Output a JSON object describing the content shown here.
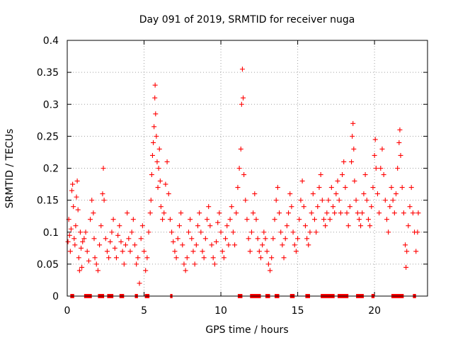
{
  "chart_data": {
    "type": "scatter",
    "title": "Day 091 of 2019, SRMTID for receiver nuga",
    "xlabel": "GPS time / hours",
    "ylabel": "SRMTID / TECUs",
    "xlim": [
      0,
      23.45
    ],
    "ylim": [
      0,
      0.4
    ],
    "xticks": [
      0,
      5,
      10,
      15,
      20
    ],
    "yticks": [
      0,
      0.05,
      0.1,
      0.15,
      0.2,
      0.25,
      0.3,
      0.35,
      0.4
    ],
    "xtick_labels": [
      "0",
      "5",
      "10",
      "15",
      "20"
    ],
    "ytick_labels": [
      "0",
      "0.05",
      "0.1",
      "0.15",
      "0.2",
      "0.25",
      "0.3",
      "0.35",
      "0.4"
    ],
    "grid": true,
    "marker": "+",
    "color": "#ff0000",
    "series": [
      {
        "name": "SRMTID",
        "points": [
          [
            0.05,
            0.085
          ],
          [
            0.1,
            0.12
          ],
          [
            0.15,
            0.095
          ],
          [
            0.2,
            0.07
          ],
          [
            0.25,
            0.105
          ],
          [
            0.3,
            0.165
          ],
          [
            0.35,
            0.175
          ],
          [
            0.4,
            0.14
          ],
          [
            0.45,
            0.09
          ],
          [
            0.5,
            0.08
          ],
          [
            0.55,
            0.11
          ],
          [
            0.6,
            0.155
          ],
          [
            0.65,
            0.18
          ],
          [
            0.7,
            0.135
          ],
          [
            0.75,
            0.06
          ],
          [
            0.8,
            0.04
          ],
          [
            0.85,
            0.1
          ],
          [
            0.9,
            0.075
          ],
          [
            0.95,
            0.045
          ],
          [
            1.0,
            0.085
          ],
          [
            1.1,
            0.09
          ],
          [
            1.2,
            0.1
          ],
          [
            1.3,
            0.07
          ],
          [
            1.4,
            0.055
          ],
          [
            1.5,
            0.12
          ],
          [
            1.6,
            0.15
          ],
          [
            1.7,
            0.13
          ],
          [
            1.75,
            0.09
          ],
          [
            1.8,
            0.06
          ],
          [
            1.9,
            0.05
          ],
          [
            2.0,
            0.04
          ],
          [
            2.1,
            0.08
          ],
          [
            2.2,
            0.11
          ],
          [
            2.3,
            0.16
          ],
          [
            2.35,
            0.2
          ],
          [
            2.4,
            0.15
          ],
          [
            2.5,
            0.09
          ],
          [
            2.6,
            0.07
          ],
          [
            2.7,
            0.06
          ],
          [
            2.8,
            0.085
          ],
          [
            2.9,
            0.1
          ],
          [
            3.0,
            0.12
          ],
          [
            3.1,
            0.075
          ],
          [
            3.2,
            0.06
          ],
          [
            3.3,
            0.095
          ],
          [
            3.4,
            0.11
          ],
          [
            3.5,
            0.085
          ],
          [
            3.6,
            0.07
          ],
          [
            3.7,
            0.05
          ],
          [
            3.8,
            0.08
          ],
          [
            3.9,
            0.13
          ],
          [
            4.0,
            0.09
          ],
          [
            4.1,
            0.07
          ],
          [
            4.2,
            0.1
          ],
          [
            4.3,
            0.12
          ],
          [
            4.4,
            0.08
          ],
          [
            4.5,
            0.05
          ],
          [
            4.6,
            0.06
          ],
          [
            4.7,
            0.02
          ],
          [
            4.8,
            0.09
          ],
          [
            4.9,
            0.11
          ],
          [
            5.0,
            0.07
          ],
          [
            5.1,
            0.04
          ],
          [
            5.2,
            0.06
          ],
          [
            5.3,
            0.1
          ],
          [
            5.4,
            0.13
          ],
          [
            5.45,
            0.15
          ],
          [
            5.5,
            0.19
          ],
          [
            5.55,
            0.22
          ],
          [
            5.6,
            0.24
          ],
          [
            5.65,
            0.265
          ],
          [
            5.7,
            0.31
          ],
          [
            5.72,
            0.33
          ],
          [
            5.75,
            0.285
          ],
          [
            5.8,
            0.25
          ],
          [
            5.85,
            0.21
          ],
          [
            5.9,
            0.17
          ],
          [
            5.95,
            0.2
          ],
          [
            6.0,
            0.23
          ],
          [
            6.05,
            0.18
          ],
          [
            6.1,
            0.14
          ],
          [
            6.2,
            0.12
          ],
          [
            6.3,
            0.13
          ],
          [
            6.4,
            0.175
          ],
          [
            6.5,
            0.21
          ],
          [
            6.6,
            0.16
          ],
          [
            6.7,
            0.12
          ],
          [
            6.8,
            0.1
          ],
          [
            6.9,
            0.085
          ],
          [
            7.0,
            0.07
          ],
          [
            7.1,
            0.06
          ],
          [
            7.2,
            0.09
          ],
          [
            7.3,
            0.11
          ],
          [
            7.4,
            0.13
          ],
          [
            7.5,
            0.08
          ],
          [
            7.6,
            0.05
          ],
          [
            7.7,
            0.04
          ],
          [
            7.8,
            0.06
          ],
          [
            7.9,
            0.1
          ],
          [
            8.0,
            0.12
          ],
          [
            8.1,
            0.09
          ],
          [
            8.2,
            0.07
          ],
          [
            8.3,
            0.05
          ],
          [
            8.4,
            0.08
          ],
          [
            8.5,
            0.11
          ],
          [
            8.6,
            0.13
          ],
          [
            8.7,
            0.1
          ],
          [
            8.8,
            0.07
          ],
          [
            8.9,
            0.06
          ],
          [
            9.0,
            0.09
          ],
          [
            9.1,
            0.12
          ],
          [
            9.2,
            0.14
          ],
          [
            9.3,
            0.11
          ],
          [
            9.4,
            0.08
          ],
          [
            9.5,
            0.06
          ],
          [
            9.6,
            0.05
          ],
          [
            9.7,
            0.085
          ],
          [
            9.8,
            0.115
          ],
          [
            9.9,
            0.13
          ],
          [
            10.0,
            0.1
          ],
          [
            10.1,
            0.07
          ],
          [
            10.2,
            0.06
          ],
          [
            10.3,
            0.09
          ],
          [
            10.4,
            0.11
          ],
          [
            10.5,
            0.08
          ],
          [
            10.6,
            0.12
          ],
          [
            10.7,
            0.14
          ],
          [
            10.8,
            0.1
          ],
          [
            10.9,
            0.08
          ],
          [
            11.0,
            0.13
          ],
          [
            11.1,
            0.17
          ],
          [
            11.2,
            0.2
          ],
          [
            11.3,
            0.23
          ],
          [
            11.35,
            0.3
          ],
          [
            11.4,
            0.355
          ],
          [
            11.45,
            0.31
          ],
          [
            11.5,
            0.19
          ],
          [
            11.6,
            0.15
          ],
          [
            11.7,
            0.12
          ],
          [
            11.8,
            0.09
          ],
          [
            11.9,
            0.07
          ],
          [
            12.0,
            0.1
          ],
          [
            12.1,
            0.13
          ],
          [
            12.2,
            0.16
          ],
          [
            12.3,
            0.12
          ],
          [
            12.4,
            0.09
          ],
          [
            12.5,
            0.07
          ],
          [
            12.6,
            0.06
          ],
          [
            12.7,
            0.08
          ],
          [
            12.8,
            0.1
          ],
          [
            12.9,
            0.09
          ],
          [
            13.0,
            0.07
          ],
          [
            13.1,
            0.05
          ],
          [
            13.2,
            0.04
          ],
          [
            13.3,
            0.06
          ],
          [
            13.4,
            0.09
          ],
          [
            13.5,
            0.12
          ],
          [
            13.6,
            0.15
          ],
          [
            13.7,
            0.17
          ],
          [
            13.8,
            0.13
          ],
          [
            13.9,
            0.1
          ],
          [
            14.0,
            0.08
          ],
          [
            14.1,
            0.06
          ],
          [
            14.2,
            0.09
          ],
          [
            14.3,
            0.11
          ],
          [
            14.4,
            0.13
          ],
          [
            14.5,
            0.16
          ],
          [
            14.6,
            0.14
          ],
          [
            14.7,
            0.1
          ],
          [
            14.8,
            0.08
          ],
          [
            14.9,
            0.07
          ],
          [
            15.0,
            0.09
          ],
          [
            15.1,
            0.12
          ],
          [
            15.2,
            0.15
          ],
          [
            15.3,
            0.18
          ],
          [
            15.4,
            0.14
          ],
          [
            15.5,
            0.11
          ],
          [
            15.6,
            0.09
          ],
          [
            15.7,
            0.08
          ],
          [
            15.8,
            0.1
          ],
          [
            15.9,
            0.13
          ],
          [
            16.0,
            0.16
          ],
          [
            16.1,
            0.12
          ],
          [
            16.2,
            0.1
          ],
          [
            16.3,
            0.14
          ],
          [
            16.4,
            0.17
          ],
          [
            16.5,
            0.19
          ],
          [
            16.6,
            0.15
          ],
          [
            16.7,
            0.12
          ],
          [
            16.8,
            0.11
          ],
          [
            16.9,
            0.13
          ],
          [
            17.0,
            0.15
          ],
          [
            17.1,
            0.12
          ],
          [
            17.2,
            0.17
          ],
          [
            17.3,
            0.14
          ],
          [
            17.4,
            0.13
          ],
          [
            17.5,
            0.16
          ],
          [
            17.6,
            0.18
          ],
          [
            17.7,
            0.15
          ],
          [
            17.8,
            0.13
          ],
          [
            17.9,
            0.19
          ],
          [
            18.0,
            0.21
          ],
          [
            18.1,
            0.17
          ],
          [
            18.2,
            0.13
          ],
          [
            18.3,
            0.11
          ],
          [
            18.4,
            0.14
          ],
          [
            18.5,
            0.21
          ],
          [
            18.55,
            0.25
          ],
          [
            18.6,
            0.27
          ],
          [
            18.65,
            0.23
          ],
          [
            18.7,
            0.18
          ],
          [
            18.8,
            0.15
          ],
          [
            18.9,
            0.13
          ],
          [
            19.0,
            0.12
          ],
          [
            19.1,
            0.11
          ],
          [
            19.2,
            0.13
          ],
          [
            19.3,
            0.16
          ],
          [
            19.4,
            0.19
          ],
          [
            19.5,
            0.15
          ],
          [
            19.6,
            0.12
          ],
          [
            19.7,
            0.11
          ],
          [
            19.8,
            0.14
          ],
          [
            19.9,
            0.17
          ],
          [
            20.0,
            0.22
          ],
          [
            20.05,
            0.245
          ],
          [
            20.1,
            0.2
          ],
          [
            20.2,
            0.16
          ],
          [
            20.3,
            0.13
          ],
          [
            20.4,
            0.2
          ],
          [
            20.5,
            0.23
          ],
          [
            20.6,
            0.19
          ],
          [
            20.7,
            0.15
          ],
          [
            20.8,
            0.12
          ],
          [
            20.9,
            0.1
          ],
          [
            21.0,
            0.14
          ],
          [
            21.1,
            0.17
          ],
          [
            21.2,
            0.15
          ],
          [
            21.3,
            0.13
          ],
          [
            21.4,
            0.16
          ],
          [
            21.5,
            0.2
          ],
          [
            21.6,
            0.24
          ],
          [
            21.65,
            0.26
          ],
          [
            21.7,
            0.22
          ],
          [
            21.8,
            0.17
          ],
          [
            21.9,
            0.13
          ],
          [
            22.0,
            0.08
          ],
          [
            22.05,
            0.045
          ],
          [
            22.1,
            0.07
          ],
          [
            22.2,
            0.11
          ],
          [
            22.3,
            0.14
          ],
          [
            22.4,
            0.17
          ],
          [
            22.5,
            0.13
          ],
          [
            22.6,
            0.1
          ],
          [
            22.7,
            0.07
          ],
          [
            22.8,
            0.1
          ],
          [
            22.85,
            0.13
          ]
        ]
      },
      {
        "name": "data gaps",
        "y": 0,
        "segments": [
          [
            0.2,
            0.45
          ],
          [
            1.1,
            1.6
          ],
          [
            2.0,
            2.4
          ],
          [
            2.6,
            3.0
          ],
          [
            3.4,
            3.7
          ],
          [
            4.4,
            4.6
          ],
          [
            5.05,
            5.35
          ],
          [
            6.7,
            6.85
          ],
          [
            11.1,
            11.4
          ],
          [
            11.9,
            12.6
          ],
          [
            12.9,
            13.2
          ],
          [
            13.5,
            13.8
          ],
          [
            14.5,
            14.8
          ],
          [
            15.5,
            15.8
          ],
          [
            16.5,
            17.4
          ],
          [
            17.6,
            18.3
          ],
          [
            18.8,
            19.3
          ],
          [
            19.8,
            20.0
          ],
          [
            21.1,
            21.9
          ],
          [
            22.5,
            22.7
          ]
        ]
      }
    ]
  }
}
